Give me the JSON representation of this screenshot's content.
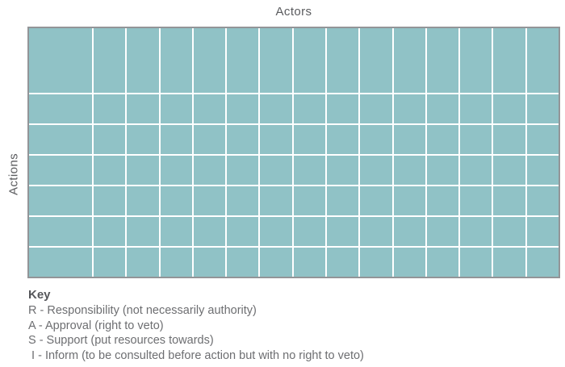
{
  "chart": {
    "title": "Actors",
    "y_axis_label": "Actions"
  },
  "grid": {
    "columns": 15,
    "rows": 7,
    "first_column_wide": true,
    "first_row_tall": true,
    "cell_color": "#90c2c6",
    "line_color": "#ffffff",
    "border_color": "#939598"
  },
  "key": {
    "title": "Key",
    "items": [
      "R - Responsibility (not necessarily authority)",
      "A - Approval (right to veto)",
      "S - Support (put resources towards)",
      " I - Inform (to be consulted before action but with no right to veto)"
    ]
  }
}
